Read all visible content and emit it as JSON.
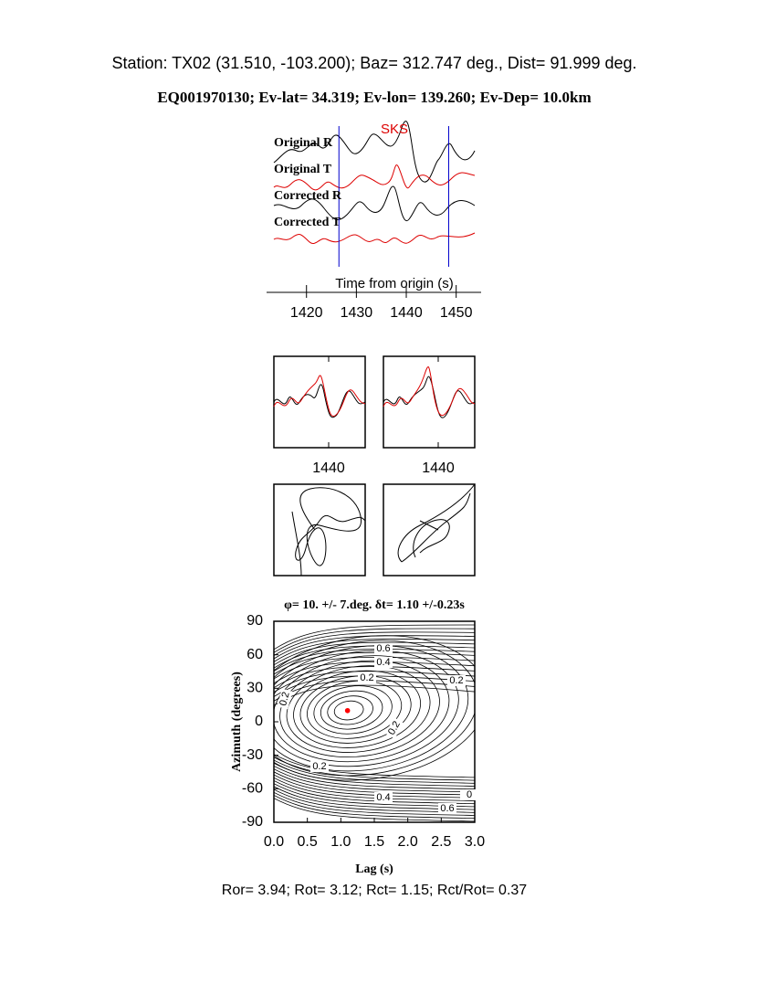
{
  "header": {
    "station": "Station: TX02 (31.510, -103.200); Baz=  312.747 deg., Dist=   91.999 deg.",
    "event": "EQ001970130; Ev-lat=  34.319; Ev-lon= 139.260; Ev-Dep= 10.0km"
  },
  "chart_data": [
    {
      "type": "waveforms",
      "phase_label": "SKS",
      "trace_labels": [
        "Original R",
        "Original T",
        "Corrected R",
        "Corrected T"
      ],
      "x_label": "Time from origin (s)",
      "xlim": [
        1412,
        1455
      ],
      "xticks": [
        1420,
        1430,
        1440,
        1450
      ],
      "window": [
        1426.5,
        1448.5
      ],
      "window_color": "#0000cc"
    },
    {
      "type": "window-panels",
      "xlim": [
        1434,
        1444
      ],
      "xticks": [
        1440
      ]
    },
    {
      "type": "contour",
      "title": "φ= 10. +/- 7.deg. δt= 1.10 +/-0.23s",
      "x_label": "Lag (s)",
      "y_label": "Azimuth (degrees)",
      "xlim": [
        0,
        3
      ],
      "ylim": [
        -90,
        90
      ],
      "xticks": [
        {
          "value": 0,
          "label": "0.0"
        },
        0.5,
        {
          "value": 1,
          "label": "1.0"
        },
        1.5,
        {
          "value": 2,
          "label": "2.0"
        },
        2.5,
        {
          "value": 3,
          "label": "3.0"
        }
      ],
      "yticks": [
        -90,
        -60,
        -30,
        0,
        30,
        60,
        90
      ],
      "best": {
        "x": 1.1,
        "y": 10,
        "color": "#ff0000"
      },
      "contour_labels": [
        0.6,
        0.4,
        0.2,
        0.2,
        0.2,
        0.2,
        0.2,
        0.4,
        0.6,
        0
      ]
    }
  ],
  "footer": "Ror= 3.94; Rot= 3.12; Rct= 1.15; Rct/Rot= 0.37"
}
